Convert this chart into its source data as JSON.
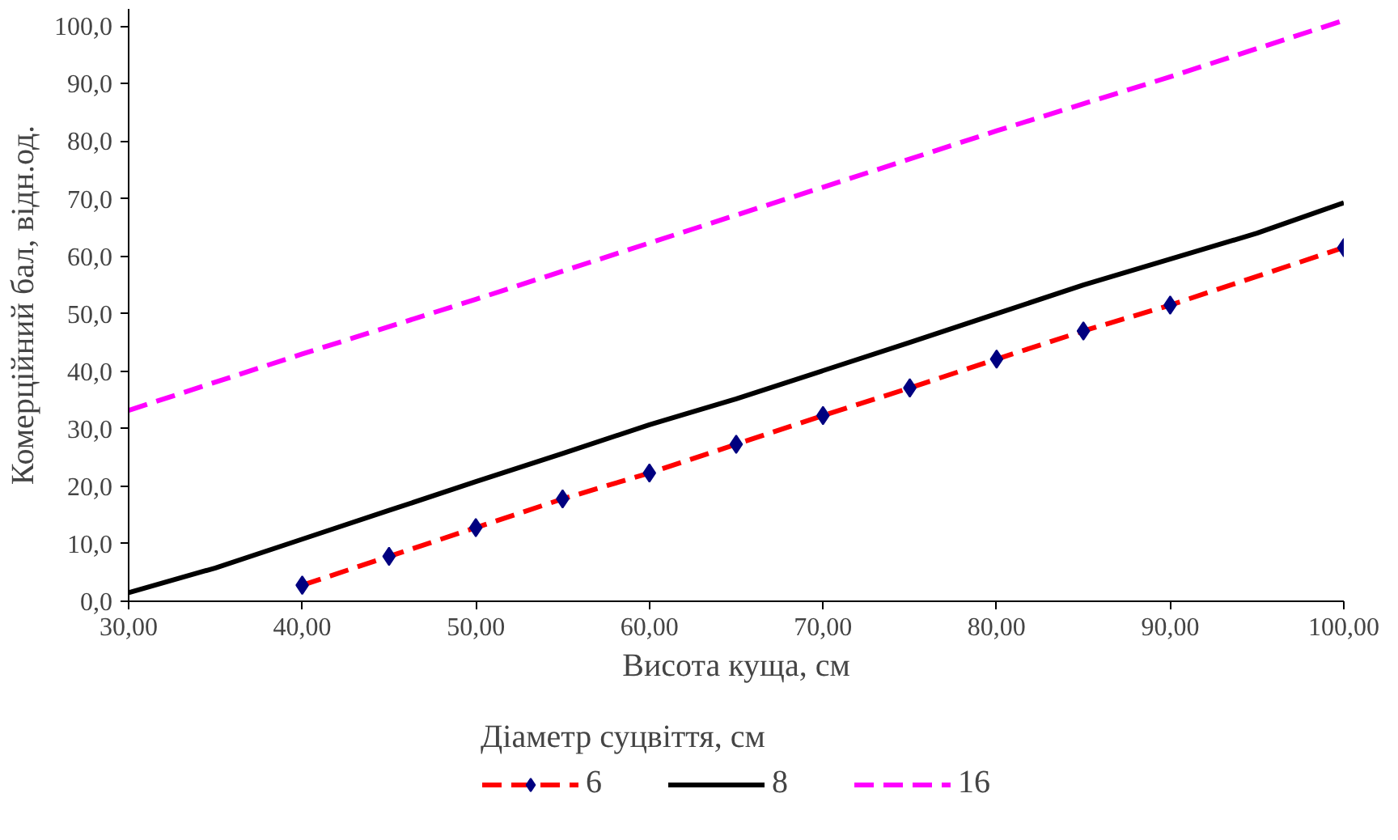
{
  "chart_data": {
    "type": "line",
    "xlabel": "Висота куща, см",
    "ylabel": "Комерційний бал, відн.од.",
    "legend_title": "Діаметр суцвіття, см",
    "legend": "bottom",
    "grid": false,
    "xlim": [
      30,
      100
    ],
    "xticks": [
      {
        "value": 30,
        "label": "30,00"
      },
      {
        "value": 40,
        "label": "40,00"
      },
      {
        "value": 50,
        "label": "50,00"
      },
      {
        "value": 60,
        "label": "60,00"
      },
      {
        "value": 70,
        "label": "70,00"
      },
      {
        "value": 80,
        "label": "80,00"
      },
      {
        "value": 90,
        "label": "90,00"
      },
      {
        "value": 100,
        "label": "100,00"
      }
    ],
    "ylim": [
      0,
      103
    ],
    "yticks": [
      {
        "value": 0,
        "label": "0,0"
      },
      {
        "value": 10,
        "label": "10,0"
      },
      {
        "value": 20,
        "label": "20,0"
      },
      {
        "value": 30,
        "label": "30,0"
      },
      {
        "value": 40,
        "label": "40,0"
      },
      {
        "value": 50,
        "label": "50,0"
      },
      {
        "value": 60,
        "label": "60,0"
      },
      {
        "value": 70,
        "label": "70,0"
      },
      {
        "value": 80,
        "label": "80,0"
      },
      {
        "value": 90,
        "label": "90,0"
      },
      {
        "value": 100,
        "label": "100,0"
      }
    ],
    "series": [
      {
        "name": "6",
        "color": "#ff0000",
        "marker": "diamond",
        "colors": [
          "#000080",
          "#000080",
          "#000080",
          "#000080",
          "#000080",
          "#000080",
          "#000080",
          "#000080",
          "#000080",
          "#000080",
          "#000080",
          "#000080"
        ],
        "line_style": "dashed",
        "x": [
          40,
          45,
          50,
          55,
          60,
          65,
          70,
          75,
          80,
          85,
          90,
          100
        ],
        "values": [
          2.8,
          7.8,
          12.8,
          17.8,
          22.3,
          27.3,
          32.3,
          37.1,
          42.1,
          47.0,
          51.5,
          61.5
        ]
      },
      {
        "name": "8",
        "color": "#000000",
        "marker": "none",
        "line_style": "solid",
        "x": [
          30,
          35,
          40,
          45,
          50,
          55,
          60,
          65,
          70,
          75,
          80,
          85,
          90,
          95,
          100
        ],
        "values": [
          1.5,
          5.8,
          10.8,
          15.8,
          20.8,
          25.7,
          30.7,
          35.2,
          40.1,
          45.0,
          50.0,
          55.0,
          59.5,
          64.0,
          69.3
        ]
      },
      {
        "name": "16",
        "color": "#ff00ff",
        "marker": "none",
        "line_style": "dashed",
        "x": [
          30,
          40,
          50,
          60,
          70,
          80,
          90,
          100
        ],
        "values": [
          33.2,
          43.0,
          52.5,
          62.3,
          72.0,
          81.8,
          91.2,
          101.0
        ]
      }
    ]
  }
}
